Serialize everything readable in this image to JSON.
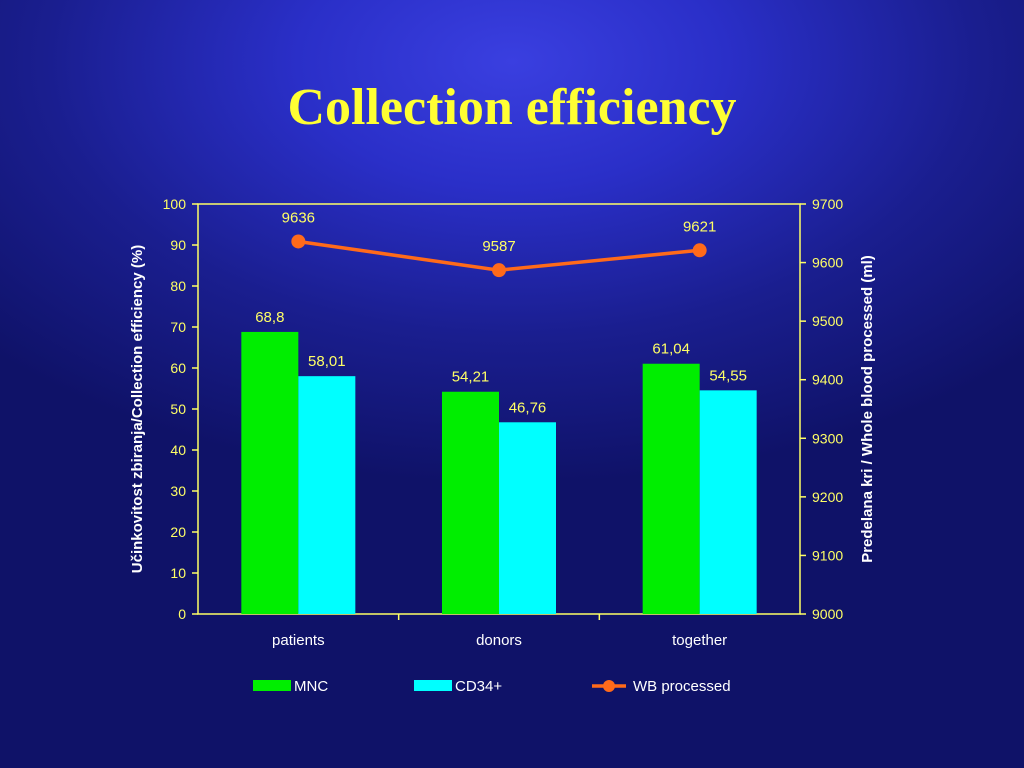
{
  "title": "Collection efficiency",
  "chart_data": {
    "type": "bar",
    "categories": [
      "patients",
      "donors",
      "together"
    ],
    "series": [
      {
        "name": "MNC",
        "type": "bar",
        "axis": "left",
        "color": "#00ee00",
        "values": [
          68.8,
          54.21,
          61.04
        ],
        "labels": [
          "68,8",
          "54,21",
          "61,04"
        ]
      },
      {
        "name": "CD34+",
        "type": "bar",
        "axis": "left",
        "color": "#00ffff",
        "values": [
          58.01,
          46.76,
          54.55
        ],
        "labels": [
          "58,01",
          "46,76",
          "54,55"
        ]
      },
      {
        "name": "WB processed",
        "type": "line",
        "axis": "right",
        "color": "#ff6a1a",
        "values": [
          9636,
          9587,
          9621
        ],
        "labels": [
          "9636",
          "9587",
          "9621"
        ]
      }
    ],
    "ylabel": "Učinkovitost zbiranja/Collection efficiency (%)",
    "ylabel_right": "Predelana kri / Whole blood processed (ml)",
    "ylim": [
      0,
      100
    ],
    "yticks": [
      0,
      10,
      20,
      30,
      40,
      50,
      60,
      70,
      80,
      90,
      100
    ],
    "ylim_right": [
      9000,
      9700
    ],
    "yticks_right": [
      9000,
      9100,
      9200,
      9300,
      9400,
      9500,
      9600,
      9700
    ],
    "legend": "bottom",
    "grid": false,
    "axis_color": "#ffff66"
  }
}
